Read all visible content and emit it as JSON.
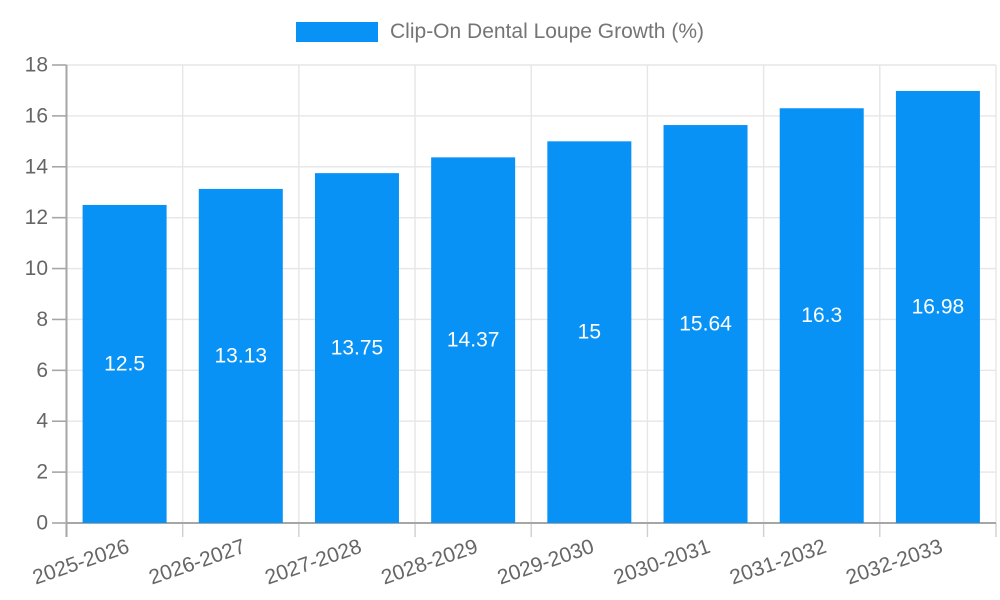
{
  "chart_data": {
    "type": "bar",
    "title": "",
    "series_name": "Clip-On Dental Loupe Growth (%)",
    "categories": [
      "2025-2026",
      "2026-2027",
      "2027-2028",
      "2028-2029",
      "2029-2030",
      "2030-2031",
      "2031-2032",
      "2032-2033"
    ],
    "values": [
      12.5,
      13.13,
      13.75,
      14.37,
      15,
      15.64,
      16.3,
      16.98
    ],
    "value_labels": [
      "12.5",
      "13.13",
      "13.75",
      "14.37",
      "15",
      "15.64",
      "16.3",
      "16.98"
    ],
    "xlabel": "",
    "ylabel": "",
    "ylim": [
      0,
      18
    ],
    "yticks": [
      0,
      2,
      4,
      6,
      8,
      10,
      12,
      14,
      16,
      18
    ],
    "grid": true,
    "legend_position": "top-center",
    "colors": {
      "bar": "#0992f5",
      "bar_value_label": "#ffffff",
      "axis_text": "#666666",
      "legend_text": "#757575",
      "grid_line": "#e6e6e6",
      "axis_line": "#a6a6a6",
      "minor_tick": "#cfcfcf"
    }
  }
}
